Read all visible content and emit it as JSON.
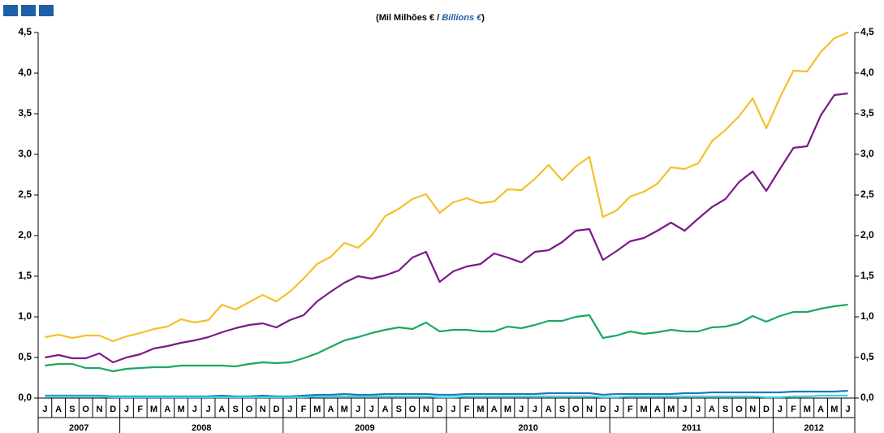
{
  "chart_data": {
    "type": "line",
    "subtitle": [
      "(Mil Milhões € / ",
      "Billions €",
      ")"
    ],
    "categories": [
      "J",
      "A",
      "S",
      "O",
      "N",
      "D",
      "J",
      "F",
      "M",
      "A",
      "M",
      "J",
      "J",
      "A",
      "S",
      "O",
      "N",
      "D",
      "J",
      "F",
      "M",
      "A",
      "M",
      "J",
      "J",
      "A",
      "S",
      "O",
      "N",
      "D",
      "J",
      "F",
      "M",
      "A",
      "M",
      "J",
      "J",
      "A",
      "S",
      "O",
      "N",
      "D",
      "J",
      "F",
      "M",
      "A",
      "M",
      "J",
      "J",
      "A",
      "S",
      "O",
      "N",
      "D",
      "J",
      "F",
      "M",
      "A",
      "M",
      "J"
    ],
    "years": [
      "2007",
      "2008",
      "2009",
      "2010",
      "2011",
      "2012"
    ],
    "ylim": [
      0,
      4.5
    ],
    "yticks": [
      {
        "value": 0,
        "label": "0,0"
      },
      {
        "value": 0.5,
        "label": "0,5"
      },
      {
        "value": 1,
        "label": "1,0"
      },
      {
        "value": 1.5,
        "label": "1,5"
      },
      {
        "value": 2,
        "label": "2,0"
      },
      {
        "value": 2.5,
        "label": "2,5"
      },
      {
        "value": 3,
        "label": "3,0"
      },
      {
        "value": 3.5,
        "label": "3,5"
      },
      {
        "value": 4,
        "label": "4,0"
      },
      {
        "value": 4.5,
        "label": "4,5"
      }
    ],
    "series": [
      {
        "color": "#f5c02a",
        "values": [
          0.75,
          0.78,
          0.74,
          0.77,
          0.77,
          0.7,
          0.76,
          0.8,
          0.85,
          0.88,
          0.97,
          0.93,
          0.96,
          1.15,
          1.09,
          1.18,
          1.27,
          1.19,
          1.31,
          1.47,
          1.65,
          1.74,
          1.91,
          1.85,
          2.0,
          2.24,
          2.33,
          2.45,
          2.51,
          2.28,
          2.41,
          2.46,
          2.4,
          2.42,
          2.57,
          2.56,
          2.7,
          2.87,
          2.68,
          2.85,
          2.97,
          2.23,
          2.31,
          2.48,
          2.54,
          2.64,
          2.84,
          2.82,
          2.89,
          3.16,
          3.3,
          3.47,
          3.69,
          3.32,
          3.7,
          4.03,
          4.02,
          4.26,
          4.43,
          4.5
        ]
      },
      {
        "color": "#7b1a89",
        "values": [
          0.5,
          0.53,
          0.49,
          0.49,
          0.55,
          0.44,
          0.5,
          0.54,
          0.61,
          0.64,
          0.68,
          0.71,
          0.75,
          0.81,
          0.86,
          0.9,
          0.92,
          0.87,
          0.96,
          1.02,
          1.19,
          1.31,
          1.42,
          1.5,
          1.47,
          1.51,
          1.57,
          1.73,
          1.8,
          1.43,
          1.56,
          1.62,
          1.65,
          1.78,
          1.73,
          1.67,
          1.8,
          1.82,
          1.92,
          2.06,
          2.08,
          1.7,
          1.81,
          1.93,
          1.97,
          2.06,
          2.16,
          2.06,
          2.21,
          2.35,
          2.45,
          2.66,
          2.79,
          2.55,
          2.82,
          3.08,
          3.1,
          3.48,
          3.73,
          3.75
        ]
      },
      {
        "color": "#1aa862",
        "values": [
          0.4,
          0.42,
          0.42,
          0.37,
          0.37,
          0.33,
          0.36,
          0.37,
          0.38,
          0.38,
          0.4,
          0.4,
          0.4,
          0.4,
          0.39,
          0.42,
          0.44,
          0.43,
          0.44,
          0.49,
          0.55,
          0.63,
          0.71,
          0.75,
          0.8,
          0.84,
          0.87,
          0.85,
          0.93,
          0.82,
          0.84,
          0.84,
          0.82,
          0.82,
          0.88,
          0.86,
          0.9,
          0.95,
          0.95,
          1.0,
          1.02,
          0.74,
          0.77,
          0.82,
          0.79,
          0.81,
          0.84,
          0.82,
          0.82,
          0.87,
          0.88,
          0.92,
          1.01,
          0.94,
          1.01,
          1.06,
          1.06,
          1.1,
          1.13,
          1.15
        ]
      },
      {
        "color": "#1f78c0",
        "values": [
          0.03,
          0.03,
          0.03,
          0.03,
          0.03,
          0.02,
          0.02,
          0.02,
          0.02,
          0.02,
          0.02,
          0.02,
          0.02,
          0.03,
          0.02,
          0.02,
          0.03,
          0.02,
          0.02,
          0.03,
          0.04,
          0.04,
          0.05,
          0.04,
          0.04,
          0.05,
          0.05,
          0.05,
          0.05,
          0.04,
          0.04,
          0.05,
          0.05,
          0.05,
          0.05,
          0.05,
          0.05,
          0.06,
          0.06,
          0.06,
          0.06,
          0.04,
          0.05,
          0.05,
          0.05,
          0.05,
          0.05,
          0.06,
          0.06,
          0.07,
          0.07,
          0.07,
          0.07,
          0.07,
          0.07,
          0.08,
          0.08,
          0.08,
          0.08,
          0.09
        ]
      },
      {
        "color": "#3fd3e3",
        "values": [
          0.02,
          0.02,
          0.02,
          0.02,
          0.02,
          0.01,
          0.01,
          0.01,
          0.01,
          0.01,
          0.01,
          0.01,
          0.01,
          0.01,
          0.01,
          0.01,
          0.01,
          0.01,
          0.01,
          0.01,
          0.02,
          0.02,
          0.02,
          0.02,
          0.02,
          0.02,
          0.02,
          0.02,
          0.02,
          0.01,
          0.01,
          0.02,
          0.02,
          0.02,
          0.02,
          0.02,
          0.02,
          0.02,
          0.02,
          0.02,
          0.02,
          0.01,
          0.01,
          0.02,
          0.02,
          0.02,
          0.02,
          0.02,
          0.02,
          0.02,
          0.02,
          0.02,
          0.02,
          0.01,
          0.01,
          0.02,
          0.02,
          0.03,
          0.03,
          0.03
        ]
      }
    ]
  }
}
